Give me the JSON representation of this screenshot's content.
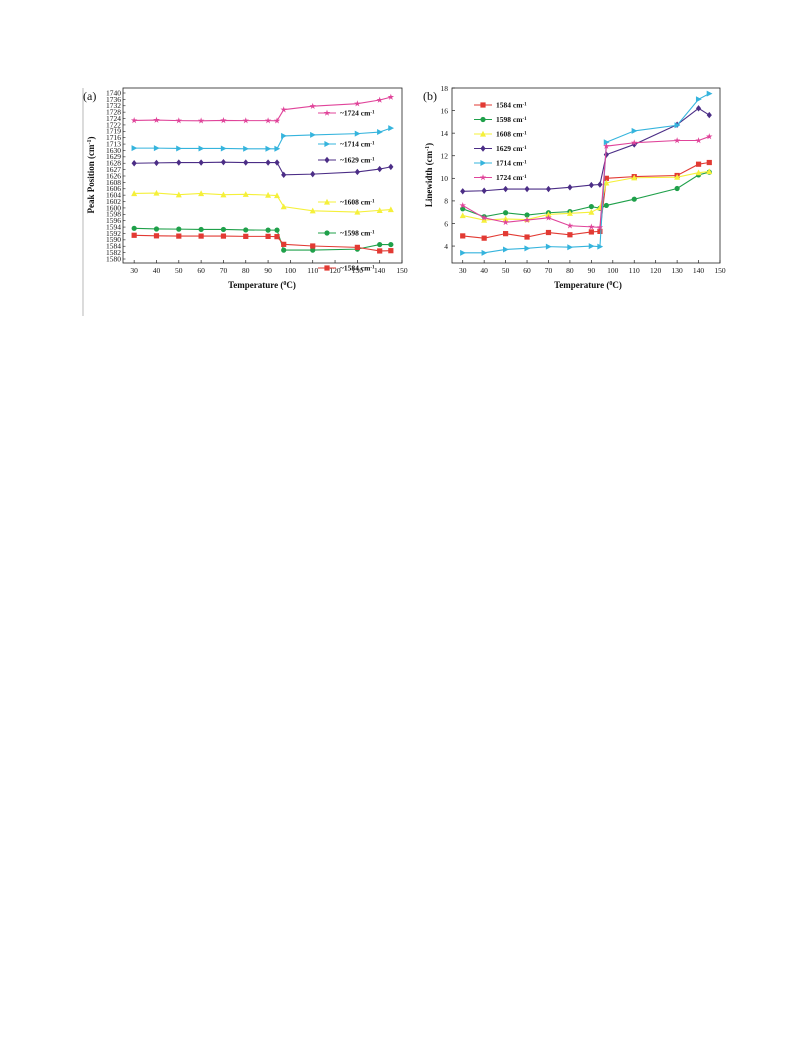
{
  "chart_data": [
    {
      "type": "line",
      "panel_label": "(a)",
      "xlabel": "Temperature (",
      "xlabel_sup": "0",
      "xlabel_tail": "C)",
      "ylabel": "Peak Position (cm",
      "ylabel_sup": "-1",
      "ylabel_tail": ")",
      "xlim": [
        25,
        150
      ],
      "x_ticks": [
        30,
        40,
        50,
        60,
        70,
        80,
        90,
        100,
        110,
        120,
        130,
        140,
        150
      ],
      "y_tick_labels": [
        "1740",
        "1736",
        "1732",
        "1728",
        "1724",
        "1722",
        "1719",
        "1716",
        "1713",
        "1630",
        "1629",
        "1628",
        "1627",
        "1626",
        "1608",
        "1606",
        "1604",
        "1602",
        "1600",
        "1598",
        "1596",
        "1594",
        "1592",
        "1590",
        "1584",
        "1582",
        "1580"
      ],
      "note_y_axis": "broken axis; each series shown in its own band",
      "series": [
        {
          "label": "~1724 cm",
          "label_sup": "-1",
          "color": "#e0449a",
          "marker": "star",
          "x": [
            30,
            40,
            50,
            60,
            70,
            80,
            90,
            94,
            97,
            110,
            130,
            140,
            145
          ],
          "y": [
            1724.4,
            1724.6,
            1724.3,
            1724.2,
            1724.4,
            1724.3,
            1724.3,
            1724.2,
            1730.3,
            1732.2,
            1733.6,
            1735.6,
            1737.2
          ],
          "band": [
            1723,
            1740
          ]
        },
        {
          "label": "~1714 cm",
          "label_sup": "-1",
          "color": "#35b4dd",
          "marker": "triangle-right",
          "x": [
            30,
            40,
            50,
            60,
            70,
            80,
            90,
            94,
            97,
            110,
            130,
            140,
            145
          ],
          "y": [
            1714.2,
            1714.2,
            1714.1,
            1714.1,
            1714.1,
            1714.0,
            1714.0,
            1714.0,
            1718.0,
            1718.3,
            1718.7,
            1719.2,
            1720.4
          ],
          "band": [
            1713,
            1722
          ]
        },
        {
          "label": "~1629 cm",
          "label_sup": "-1",
          "color": "#4b2d86",
          "marker": "diamond",
          "x": [
            30,
            40,
            50,
            60,
            70,
            80,
            90,
            94,
            97,
            110,
            130,
            140,
            145
          ],
          "y": [
            1629.0,
            1629.05,
            1629.1,
            1629.1,
            1629.15,
            1629.1,
            1629.1,
            1629.1,
            1627.4,
            1627.5,
            1627.8,
            1628.2,
            1628.5
          ],
          "band": [
            1626,
            1630
          ]
        },
        {
          "label": "~1608 cm",
          "label_sup": "-1",
          "color": "#f5f03a",
          "marker": "triangle-up",
          "x": [
            30,
            40,
            50,
            60,
            70,
            80,
            90,
            94,
            97,
            110,
            130,
            140,
            145
          ],
          "y": [
            1607.4,
            1607.5,
            1607.1,
            1607.4,
            1607.1,
            1607.2,
            1607.0,
            1606.9,
            1604.2,
            1603.2,
            1602.9,
            1603.3,
            1603.5
          ],
          "band": [
            1600,
            1608
          ]
        },
        {
          "label": "~1598 cm",
          "label_sup": "-1",
          "color": "#1fa04a",
          "marker": "circle",
          "x": [
            30,
            40,
            50,
            60,
            70,
            80,
            90,
            94,
            97,
            110,
            130,
            140,
            145
          ],
          "y": [
            1597.9,
            1597.7,
            1597.65,
            1597.55,
            1597.55,
            1597.4,
            1597.35,
            1597.35,
            1591.2,
            1591.2,
            1591.5,
            1592.9,
            1592.9
          ],
          "band": [
            1590,
            1598
          ]
        },
        {
          "label": "~1584 cm",
          "label_sup": "-1",
          "color": "#e23a33",
          "marker": "square",
          "x": [
            30,
            40,
            50,
            60,
            70,
            80,
            90,
            94,
            97,
            110,
            130,
            140,
            145
          ],
          "y": [
            1583.95,
            1583.85,
            1583.8,
            1583.8,
            1583.8,
            1583.75,
            1583.75,
            1583.7,
            1582.3,
            1582.0,
            1581.75,
            1581.1,
            1581.15
          ],
          "band": [
            1580,
            1584
          ]
        }
      ]
    },
    {
      "type": "line",
      "panel_label": "(b)",
      "xlabel": "Temperature (",
      "xlabel_sup": "0",
      "xlabel_tail": "C)",
      "ylabel": "Linewidth (cm",
      "ylabel_sup": "-1",
      "ylabel_tail": ")",
      "xlim": [
        25,
        150
      ],
      "ylim": [
        2.5,
        18
      ],
      "x_ticks": [
        30,
        40,
        50,
        60,
        70,
        80,
        90,
        100,
        110,
        120,
        130,
        140,
        150
      ],
      "y_ticks": [
        4,
        6,
        8,
        10,
        12,
        14,
        16,
        18
      ],
      "legend_position": "top-left",
      "series": [
        {
          "label": "1584 cm",
          "label_sup": "-1",
          "color": "#e23a33",
          "marker": "square",
          "x": [
            30,
            40,
            50,
            60,
            70,
            80,
            90,
            94,
            97,
            110,
            130,
            140,
            145
          ],
          "y": [
            4.9,
            4.7,
            5.1,
            4.8,
            5.2,
            5.0,
            5.25,
            5.3,
            10.0,
            10.15,
            10.25,
            11.25,
            11.4
          ]
        },
        {
          "label": "1598 cm",
          "label_sup": "-1",
          "color": "#1fa04a",
          "marker": "circle",
          "x": [
            30,
            40,
            50,
            60,
            70,
            80,
            90,
            94,
            97,
            110,
            130,
            140,
            145
          ],
          "y": [
            7.3,
            6.6,
            6.95,
            6.75,
            6.95,
            7.05,
            7.5,
            7.35,
            7.6,
            8.15,
            9.1,
            10.3,
            10.55
          ]
        },
        {
          "label": "1608 cm",
          "label_sup": "-1",
          "color": "#f5f03a",
          "marker": "triangle-up",
          "x": [
            30,
            40,
            50,
            60,
            70,
            80,
            90,
            94,
            97,
            110,
            130,
            140,
            145
          ],
          "y": [
            6.7,
            6.3,
            6.4,
            6.35,
            6.8,
            6.9,
            7.0,
            7.4,
            9.6,
            10.05,
            10.1,
            10.5,
            10.6
          ]
        },
        {
          "label": "1629 cm",
          "label_sup": "-1",
          "color": "#4b2d86",
          "marker": "diamond",
          "x": [
            30,
            40,
            50,
            60,
            70,
            80,
            90,
            94,
            97,
            110,
            130,
            140,
            145
          ],
          "y": [
            8.85,
            8.9,
            9.05,
            9.05,
            9.05,
            9.2,
            9.4,
            9.45,
            12.1,
            13.0,
            14.75,
            16.2,
            15.6
          ]
        },
        {
          "label": "1714 cm",
          "label_sup": "-1",
          "color": "#35b4dd",
          "marker": "triangle-right",
          "x": [
            30,
            40,
            50,
            60,
            70,
            80,
            90,
            94,
            97,
            110,
            130,
            140,
            145
          ],
          "y": [
            3.4,
            3.4,
            3.7,
            3.8,
            3.95,
            3.9,
            4.0,
            3.95,
            13.2,
            14.2,
            14.7,
            17.0,
            17.5
          ]
        },
        {
          "label": "1724 cm",
          "label_sup": "-1",
          "color": "#e0449a",
          "marker": "star",
          "x": [
            30,
            40,
            50,
            60,
            70,
            80,
            90,
            94,
            97,
            110,
            130,
            140,
            145
          ],
          "y": [
            7.6,
            6.5,
            6.1,
            6.3,
            6.5,
            5.8,
            5.7,
            5.65,
            12.85,
            13.15,
            13.35,
            13.35,
            13.7
          ]
        }
      ]
    }
  ]
}
